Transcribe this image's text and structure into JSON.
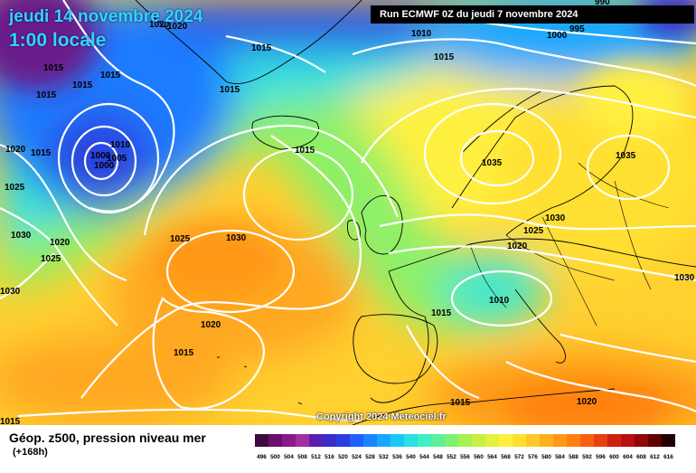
{
  "header": {
    "date": "jeudi 14 novembre 2024",
    "time": "1:00 locale",
    "run": "Run ECMWF 0Z du jeudi 7 novembre 2024"
  },
  "footer": {
    "field": "Géop. z500, pression niveau mer",
    "hours": "(+168h)",
    "copyright": "Copyright 2024 Meteociel.fr"
  },
  "legend": {
    "ticks": [
      "496",
      "500",
      "504",
      "508",
      "512",
      "516",
      "520",
      "524",
      "528",
      "532",
      "536",
      "540",
      "544",
      "548",
      "552",
      "556",
      "560",
      "564",
      "568",
      "572",
      "576",
      "580",
      "584",
      "588",
      "592",
      "596",
      "600",
      "604",
      "608",
      "612",
      "616"
    ],
    "colors": [
      "#3d0a3d",
      "#6a0f6a",
      "#8a1a8a",
      "#a02fa0",
      "#5a1fb0",
      "#3a2cc8",
      "#2a3ee0",
      "#2160ff",
      "#1a84ff",
      "#16a8ff",
      "#1ac8f5",
      "#2ae0e0",
      "#3ff0c0",
      "#5cf09a",
      "#80f070",
      "#a6f050",
      "#c8f040",
      "#e6f040",
      "#fff040",
      "#ffe030",
      "#ffc828",
      "#ffb020",
      "#ff9818",
      "#ff8010",
      "#f86010",
      "#e84010",
      "#d02010",
      "#b81010",
      "#900808",
      "#600000",
      "#200000"
    ]
  },
  "pressure_labels": [
    {
      "text": "1015"
    },
    {
      "text": "1015"
    },
    {
      "text": "1015"
    },
    {
      "text": "1015"
    },
    {
      "text": "1020"
    },
    {
      "text": "1015"
    },
    {
      "text": "1010"
    },
    {
      "text": "1005"
    },
    {
      "text": "1000"
    },
    {
      "text": "1000"
    },
    {
      "text": "1025"
    },
    {
      "text": "1030"
    },
    {
      "text": "1020"
    },
    {
      "text": "1025"
    },
    {
      "text": "1030"
    },
    {
      "text": "1025"
    },
    {
      "text": "1030"
    },
    {
      "text": "1020"
    },
    {
      "text": "1015"
    },
    {
      "text": "1015"
    },
    {
      "text": "1015"
    },
    {
      "text": "1015"
    },
    {
      "text": "1010"
    },
    {
      "text": "1015"
    },
    {
      "text": "1000"
    },
    {
      "text": "995"
    },
    {
      "text": "1035"
    },
    {
      "text": "1035"
    },
    {
      "text": "1030"
    },
    {
      "text": "1025"
    },
    {
      "text": "1020"
    },
    {
      "text": "1010"
    },
    {
      "text": "1015"
    },
    {
      "text": "1030"
    },
    {
      "text": "1015"
    },
    {
      "text": "1020"
    },
    {
      "text": "1015"
    },
    {
      "text": "1020"
    },
    {
      "text": "1020"
    },
    {
      "text": "990"
    }
  ]
}
